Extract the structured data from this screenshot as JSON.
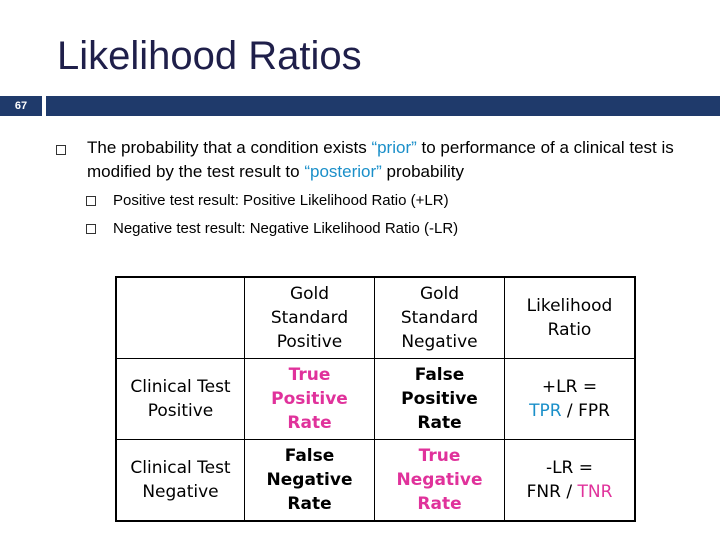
{
  "slide": {
    "title": "Likelihood Ratios",
    "number": "67"
  },
  "main_bullet": {
    "part1": "The probability that a condition exists ",
    "prior": "“prior”",
    "part2": " to performance of a clinical test is modified by the test result to ",
    "posterior": "“posterior”",
    "part3": " probability"
  },
  "sub_bullets": [
    "Positive test result: Positive Likelihood Ratio (+LR)",
    "Negative test result: Negative Likelihood Ratio (-LR)"
  ],
  "table": {
    "headers": {
      "gs_positive": [
        "Gold",
        "Standard",
        "Positive"
      ],
      "gs_negative": [
        "Gold",
        "Standard",
        "Negative"
      ],
      "lr": [
        "Likelihood",
        "Ratio"
      ]
    },
    "rows": [
      {
        "label": [
          "Clinical Test",
          "Positive"
        ],
        "cell1": [
          "True",
          "Positive",
          "Rate"
        ],
        "cell2": [
          "False",
          "Positive",
          "Rate"
        ],
        "formula_prefix": "+LR =",
        "formula_a": "TPR",
        "formula_sep": " / ",
        "formula_b": "FPR"
      },
      {
        "label": [
          "Clinical Test",
          "Negative"
        ],
        "cell1": [
          "False",
          "Negative",
          "Rate"
        ],
        "cell2": [
          "True",
          "Negative",
          "Rate"
        ],
        "formula_prefix": "-LR =",
        "formula_a": "FNR",
        "formula_sep": " / ",
        "formula_b": "TNR"
      }
    ]
  },
  "colors": {
    "title": "#1f1f4a",
    "bar": "#1f3a6b",
    "accent_blue": "#1a8fc9",
    "accent_pink": "#e0329b"
  }
}
